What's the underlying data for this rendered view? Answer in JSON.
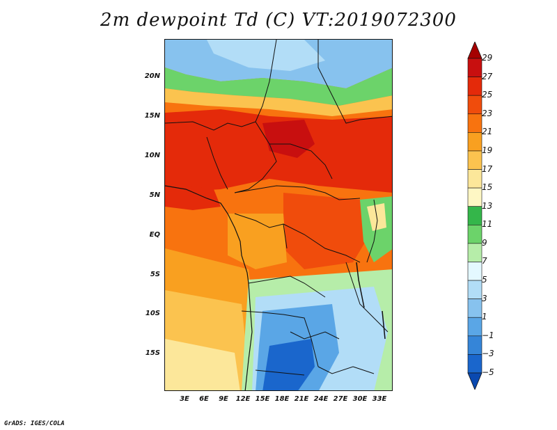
{
  "title": "2m dewpoint Td (C) VT:2019072300",
  "credit": "GrADS: IGES/COLA",
  "y_ticks": [
    "20N",
    "15N",
    "10N",
    "5N",
    "EQ",
    "5S",
    "10S",
    "15S"
  ],
  "x_ticks": [
    "3E",
    "6E",
    "9E",
    "12E",
    "15E",
    "18E",
    "21E",
    "24E",
    "27E",
    "30E",
    "33E"
  ],
  "colorbar": {
    "labels": [
      "29",
      "27",
      "25",
      "23",
      "21",
      "19",
      "17",
      "15",
      "13",
      "11",
      "9",
      "7",
      "5",
      "3",
      "1",
      "−1",
      "−3",
      "−5"
    ],
    "colors": [
      "#a50000",
      "#c80f0f",
      "#e42a0a",
      "#f04c0c",
      "#f8730f",
      "#f9a020",
      "#fbc34f",
      "#fce79a",
      "#fef7c4",
      "#34b64a",
      "#6cd36a",
      "#b6eda9",
      "#e4f8ff",
      "#b2ddf7",
      "#87c2ee",
      "#5aa6e6",
      "#3585d8",
      "#1a66cc",
      "#0a49b0"
    ]
  }
}
